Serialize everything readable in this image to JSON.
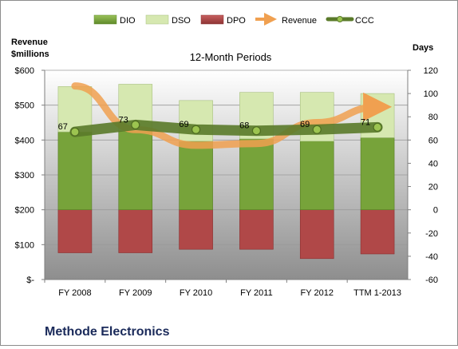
{
  "chart_data": {
    "type": "bar",
    "title": "12-Month Periods",
    "company": "Methode Electronics",
    "left_axis": {
      "title_line1": "Revenue",
      "title_line2": "$millions",
      "range": [
        0,
        600
      ],
      "ticks": [
        0,
        100,
        200,
        300,
        400,
        500,
        600
      ],
      "tick_labels": [
        "$-",
        "$100",
        "$200",
        "$300",
        "$400",
        "$500",
        "$600"
      ]
    },
    "right_axis": {
      "title": "Days",
      "range": [
        -60,
        120
      ],
      "ticks": [
        -60,
        -40,
        -20,
        0,
        20,
        40,
        60,
        80,
        100,
        120
      ],
      "tick_labels": [
        "-60",
        "-40",
        "-20",
        "0",
        "20",
        "40",
        "60",
        "80",
        "100",
        "120"
      ]
    },
    "categories": [
      "FY 2008",
      "FY 2009",
      "FY 2010",
      "FY 2011",
      "FY 2012",
      "TTM 1-2013"
    ],
    "series": [
      {
        "name": "DIO",
        "type": "stacked-bar",
        "axis": "days",
        "color": "#77a33a",
        "values": [
          67,
          68,
          59,
          61,
          59,
          62
        ]
      },
      {
        "name": "DSO",
        "type": "stacked-bar",
        "axis": "days",
        "color": "#d6e8b0",
        "values": [
          39,
          40,
          35,
          40,
          42,
          38
        ]
      },
      {
        "name": "DPO",
        "type": "stacked-bar",
        "axis": "days",
        "color": "#b04848",
        "values": [
          -37,
          -37,
          -34,
          -34,
          -42,
          -38
        ]
      },
      {
        "name": "Revenue",
        "type": "line",
        "axis": "revenue",
        "color": "#f0a050",
        "values": [
          555,
          430,
          385,
          390,
          450,
          495
        ]
      },
      {
        "name": "CCC",
        "type": "line",
        "axis": "days",
        "color": "#5a7a2a",
        "values": [
          67,
          73,
          69,
          68,
          69,
          71
        ]
      }
    ],
    "ccc_labels": [
      "67",
      "73",
      "69",
      "68",
      "69",
      "71"
    ],
    "legend_position": "top"
  }
}
